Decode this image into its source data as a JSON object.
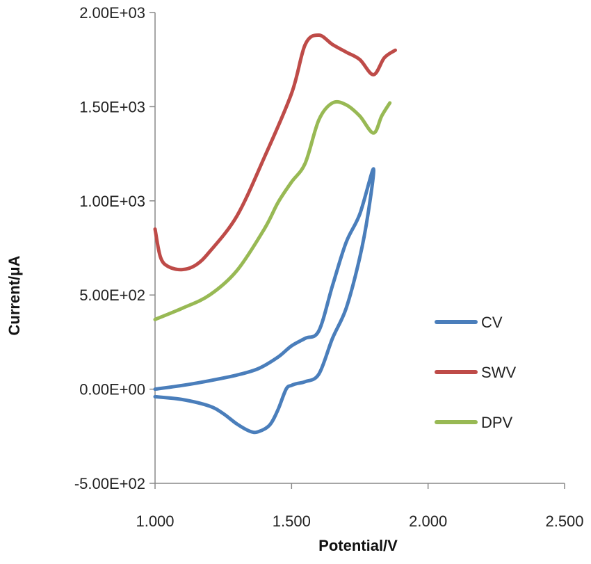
{
  "chart_data": {
    "type": "line",
    "xlabel": "Potential/V",
    "ylabel": "Current/μA",
    "xlim": [
      1.0,
      2.5
    ],
    "ylim": [
      -500,
      2000
    ],
    "x_ticks": [
      1.0,
      1.5,
      2.0,
      2.5
    ],
    "x_tick_labels": [
      "1.000",
      "1.500",
      "2.000",
      "2.500"
    ],
    "y_ticks": [
      -500,
      0,
      500,
      1000,
      1500,
      2000
    ],
    "y_tick_labels": [
      "-5.00E+02",
      "0.00E+00",
      "5.00E+02",
      "1.00E+03",
      "1.50E+03",
      "2.00E+03"
    ],
    "grid": false,
    "legend_position": "right",
    "series": [
      {
        "name": "CV",
        "color": "#4a7ebb",
        "x": [
          1.0,
          1.1,
          1.2,
          1.3,
          1.38,
          1.45,
          1.5,
          1.55,
          1.6,
          1.65,
          1.7,
          1.75,
          1.8,
          1.78,
          1.75,
          1.7,
          1.65,
          1.6,
          1.55,
          1.52,
          1.5,
          1.48,
          1.45,
          1.42,
          1.38,
          1.35,
          1.3,
          1.25,
          1.2,
          1.1,
          1.0
        ],
        "y": [
          0,
          20,
          45,
          75,
          110,
          170,
          230,
          270,
          310,
          550,
          780,
          930,
          1170,
          930,
          700,
          430,
          270,
          80,
          40,
          30,
          20,
          0,
          -110,
          -190,
          -225,
          -225,
          -185,
          -130,
          -90,
          -55,
          -40
        ]
      },
      {
        "name": "SWV",
        "color": "#be4b48",
        "x": [
          1.0,
          1.02,
          1.05,
          1.1,
          1.15,
          1.2,
          1.3,
          1.4,
          1.5,
          1.55,
          1.6,
          1.65,
          1.7,
          1.75,
          1.8,
          1.84,
          1.88
        ],
        "y": [
          850,
          700,
          650,
          635,
          660,
          730,
          920,
          1230,
          1570,
          1830,
          1880,
          1830,
          1790,
          1750,
          1670,
          1760,
          1800
        ]
      },
      {
        "name": "DPV",
        "color": "#98b954",
        "x": [
          1.0,
          1.1,
          1.2,
          1.3,
          1.4,
          1.45,
          1.5,
          1.55,
          1.6,
          1.65,
          1.7,
          1.75,
          1.8,
          1.83,
          1.86
        ],
        "y": [
          370,
          430,
          500,
          630,
          850,
          990,
          1100,
          1200,
          1430,
          1520,
          1510,
          1450,
          1360,
          1450,
          1520
        ]
      }
    ]
  }
}
